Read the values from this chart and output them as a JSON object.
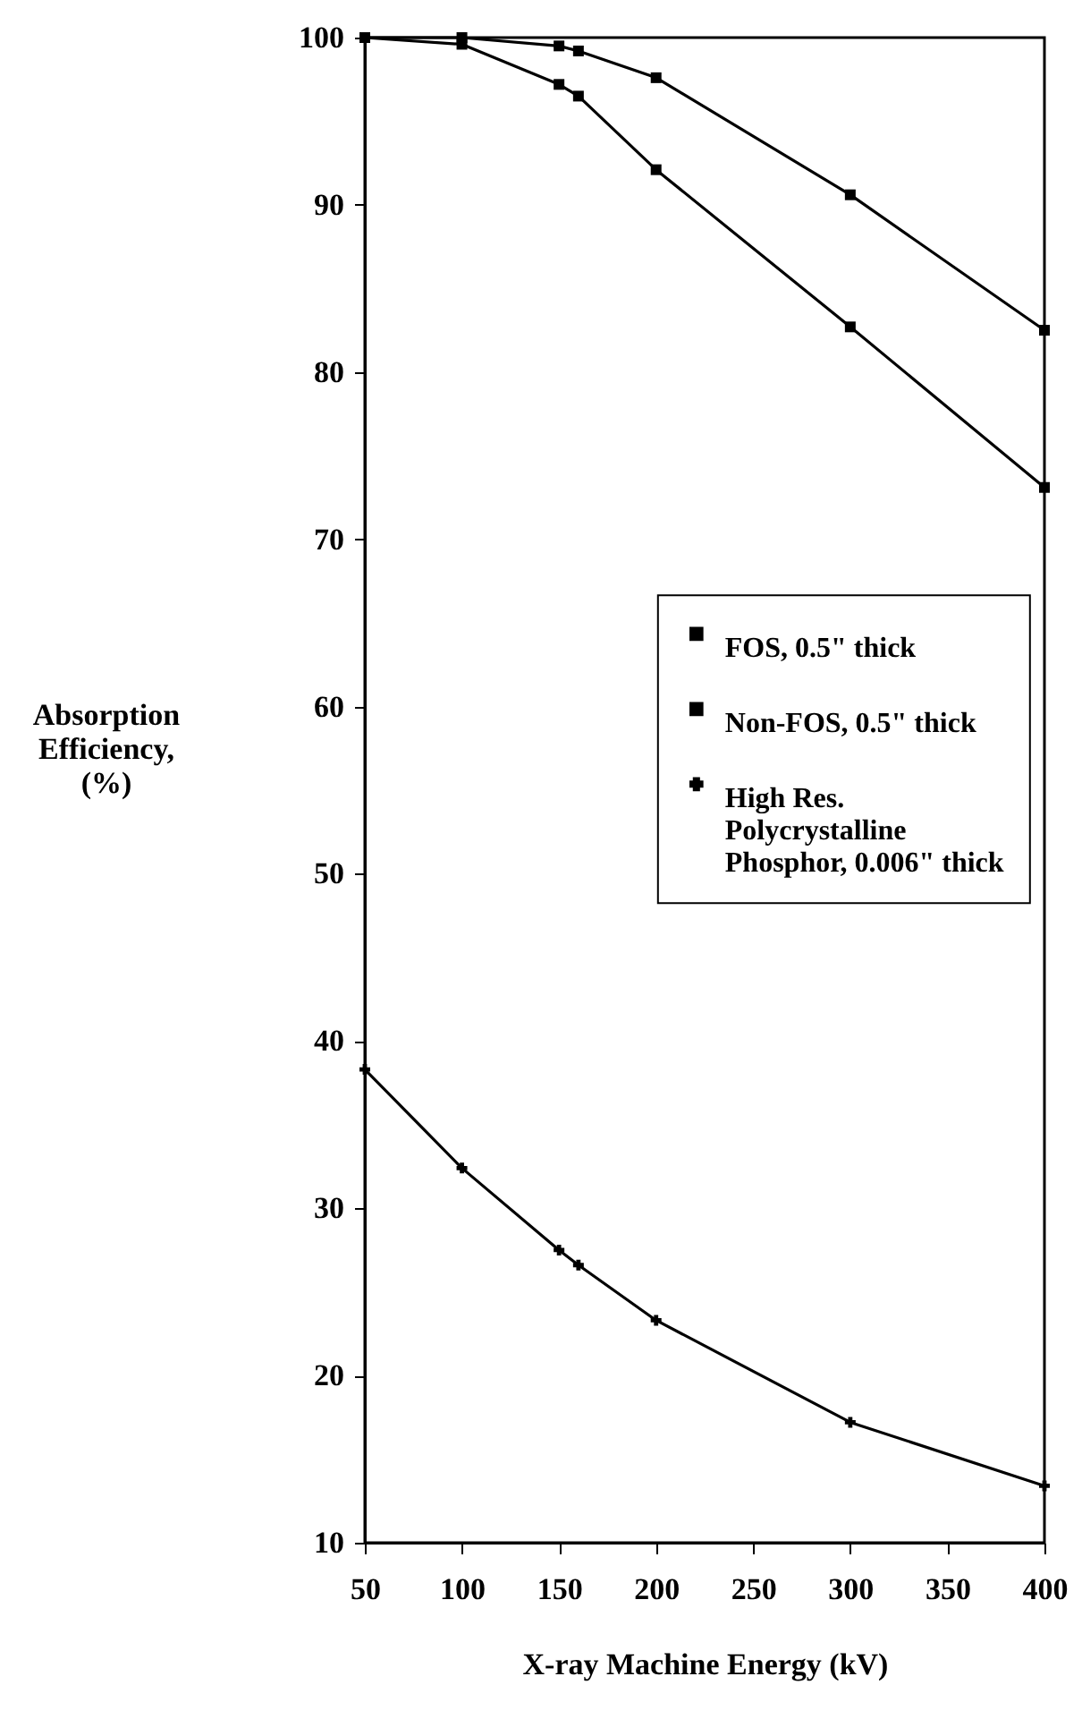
{
  "chart_data": {
    "type": "line",
    "xlabel": "X-ray Machine Energy (kV)",
    "ylabel": "Absorption Efficiency, (%)",
    "x": [
      50,
      100,
      150,
      160,
      200,
      300,
      400
    ],
    "series": [
      {
        "name": "FOS, 0.5\" thick",
        "color": "#000000",
        "marker": "square",
        "values": [
          100,
          100,
          99.5,
          99.2,
          97.6,
          90.6,
          82.5
        ]
      },
      {
        "name": "Non-FOS, 0.5\" thick",
        "color": "#000000",
        "marker": "square",
        "values": [
          100,
          99.6,
          97.2,
          96.5,
          92.1,
          82.7,
          73.1
        ]
      },
      {
        "name": "High Res. Polycrystalline Phosphor, 0.006\" thick",
        "color": "#000000",
        "marker": "cross",
        "values": [
          38.3,
          32.4,
          27.5,
          26.6,
          23.3,
          17.2,
          13.4
        ]
      }
    ],
    "xlim": [
      50,
      400
    ],
    "xticks": [
      50,
      100,
      150,
      200,
      250,
      300,
      350,
      400
    ],
    "ylim": [
      10,
      100
    ],
    "yticks": [
      10,
      20,
      30,
      40,
      50,
      60,
      70,
      80,
      90,
      100
    ],
    "grid": false,
    "legend": "right",
    "line_style": "solid"
  }
}
